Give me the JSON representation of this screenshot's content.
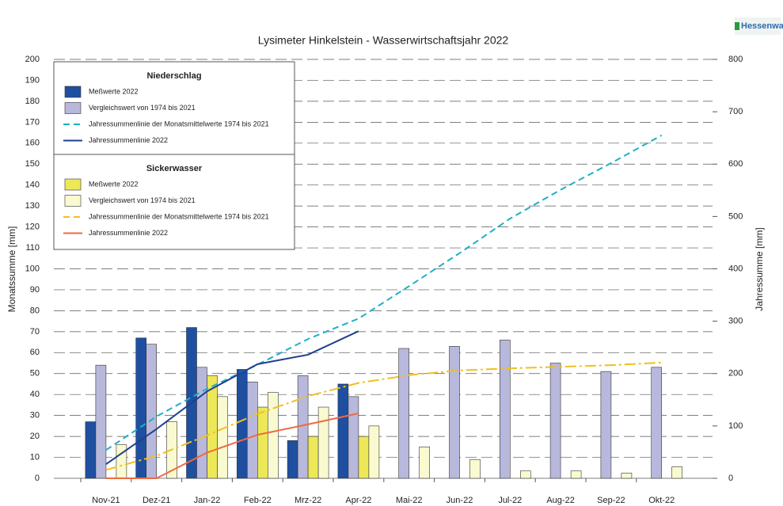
{
  "chart_data": {
    "type": "bar",
    "title": "Lysimeter Hinkelstein -  Wasserwirtschaftsjahr 2022",
    "logo": "Hessenwasser",
    "ylabel": "Monatssumme [mm]",
    "y2label": "Jahressumme [mm]",
    "categories": [
      "Nov-21",
      "Dez-21",
      "Jan-22",
      "Feb-22",
      "Mrz-22",
      "Apr-22",
      "Mai-22",
      "Jun-22",
      "Jul-22",
      "Aug-22",
      "Sep-22",
      "Okt-22"
    ],
    "ylim": [
      0,
      200
    ],
    "yticks": [
      0,
      10,
      20,
      30,
      40,
      50,
      60,
      70,
      80,
      90,
      100,
      110,
      120,
      130,
      140,
      150,
      160,
      170,
      180,
      190,
      200
    ],
    "y2lim": [
      0,
      800
    ],
    "y2ticks": [
      0,
      100,
      200,
      300,
      400,
      500,
      600,
      700,
      800
    ],
    "grid": true,
    "legend": "upper left",
    "series_groups": [
      {
        "name": "Niederschlag",
        "series": [
          {
            "name": "Meßwerte 2022",
            "kind": "bar",
            "color": "#1f4fa0",
            "values": [
              27,
              67,
              72,
              52,
              18,
              45,
              null,
              null,
              null,
              null,
              null,
              null
            ]
          },
          {
            "name": "Vergleichswert von 1974 bis 2021",
            "kind": "bar",
            "color": "#b8b8dc",
            "values": [
              54,
              64,
              53,
              46,
              49,
              39,
              62,
              63,
              66,
              55,
              51,
              53
            ]
          },
          {
            "name": "Jahressummenlinie der Monatsmittelwerte 1974 bis 2021",
            "kind": "line",
            "axis": "y2",
            "dash": "dashed",
            "color": "#1fb0c8",
            "values": [
              54,
              118,
              171,
              217,
              266,
              305,
              367,
              430,
              496,
              551,
              602,
              655
            ]
          },
          {
            "name": "Jahressummenlinie 2022",
            "kind": "line",
            "axis": "y2",
            "dash": "solid",
            "color": "#1f3f8f",
            "values": [
              27,
              94,
              166,
              218,
              236,
              281,
              null,
              null,
              null,
              null,
              null,
              null
            ]
          }
        ]
      },
      {
        "name": "Sickerwasser",
        "series": [
          {
            "name": "Meßwerte 2022",
            "kind": "bar",
            "color": "#ece858",
            "values": [
              0,
              0,
              49,
              34,
              20,
              20,
              null,
              null,
              null,
              null,
              null,
              null
            ]
          },
          {
            "name": "Vergleichswert von 1974 bis 2021",
            "kind": "bar",
            "color": "#fafad0",
            "values": [
              16,
              27,
              39,
              41,
              34,
              25,
              15,
              9,
              3.5,
              3.5,
              2.5,
              5.5
            ]
          },
          {
            "name": "Jahressummenlinie der Monatsmittelwerte 1974 bis 2021",
            "kind": "line",
            "axis": "y2",
            "dash": "dashdot",
            "color": "#f0c020",
            "values": [
              16,
              43,
              82,
              123,
              157,
              182,
              197,
              206,
              210,
              213,
              216,
              221
            ]
          },
          {
            "name": "Jahressummenlinie 2022",
            "kind": "line",
            "axis": "y2",
            "dash": "solid",
            "color": "#f06a40",
            "values": [
              0,
              0,
              49,
              83,
              103,
              124,
              null,
              null,
              null,
              null,
              null,
              null
            ]
          }
        ]
      }
    ]
  }
}
